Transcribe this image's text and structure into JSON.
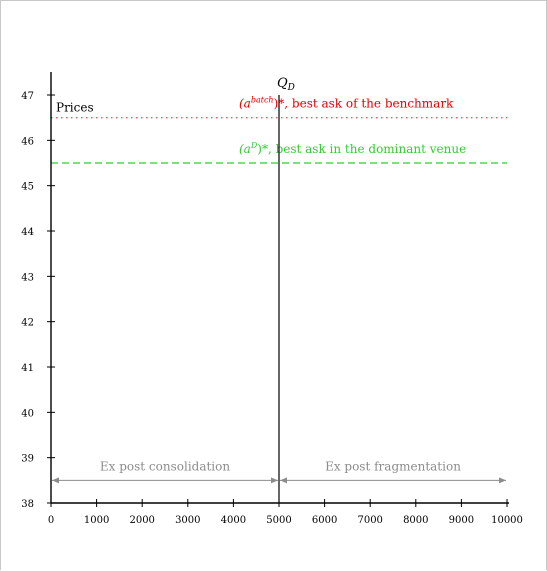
{
  "chart_data": {
    "type": "line",
    "ylabel": "Prices",
    "xlim": [
      0,
      10000
    ],
    "ylim": [
      38,
      47.5
    ],
    "x_ticks": [
      0,
      1000,
      2000,
      3000,
      4000,
      5000,
      6000,
      7000,
      8000,
      9000,
      10000
    ],
    "y_ticks": [
      38,
      39,
      40,
      41,
      42,
      43,
      44,
      45,
      46,
      47
    ],
    "grid": false,
    "vertical_line": {
      "x": 5000,
      "label": "Q_D",
      "label_main": "Q",
      "label_sub": "D",
      "color": "#000000"
    },
    "horizontal_lines": [
      {
        "y": 46.5,
        "style": "dotted",
        "color": "#ff4d6a",
        "label_prefix": "(a",
        "label_sup": "batch",
        "label_suffix": ")*, best ask of the benchmark",
        "label_color": "#e60000",
        "label_x": 5000
      },
      {
        "y": 45.5,
        "style": "dashed",
        "color": "#33cc33",
        "label_prefix": "(a",
        "label_sup": "D",
        "label_suffix": ")*, best ask in the dominant venue",
        "label_color": "#33cc33",
        "label_x": 5000
      }
    ],
    "ranges": [
      {
        "from": 0,
        "to": 5000,
        "y": 38.5,
        "label": "Ex post consolidation"
      },
      {
        "from": 5000,
        "to": 10000,
        "y": 38.5,
        "label": "Ex post fragmentation"
      }
    ],
    "range_color": "#8c8c8c"
  }
}
